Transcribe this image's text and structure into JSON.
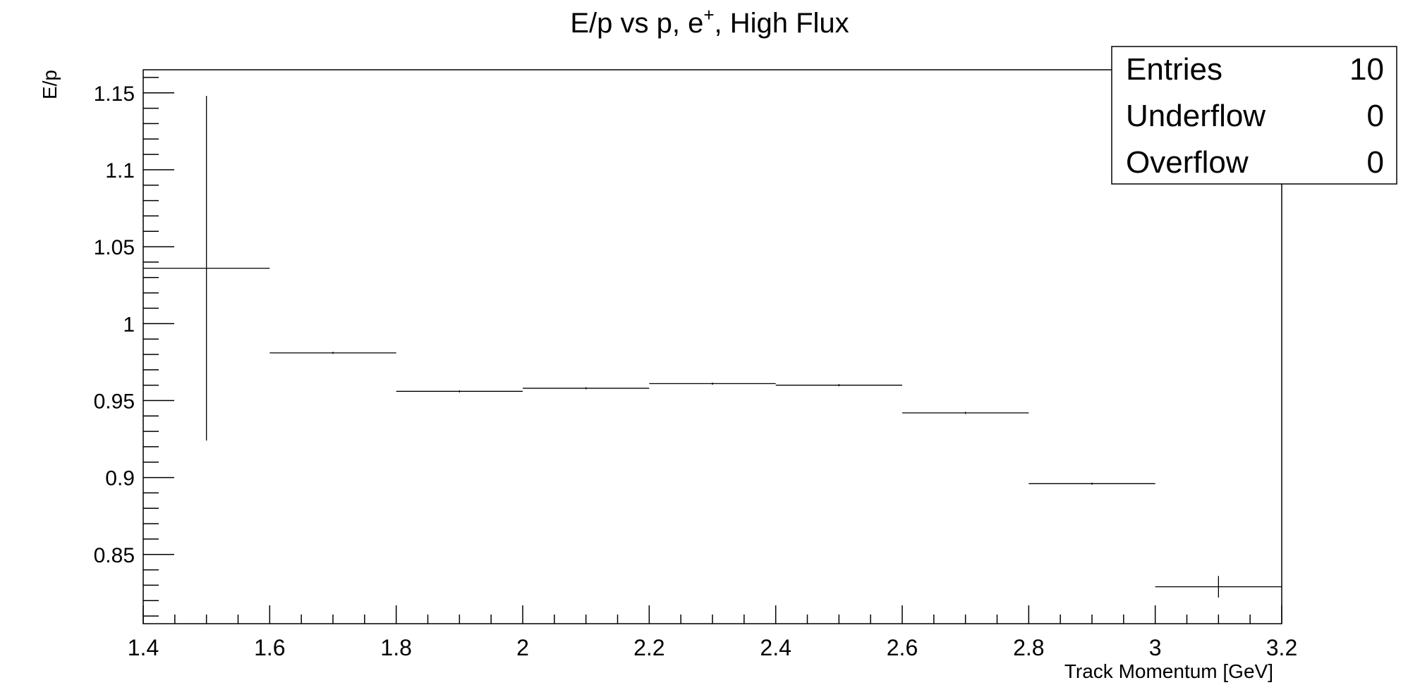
{
  "chart_data": {
    "type": "scatter",
    "title": "E/p vs p, e",
    "title_superscript": "+",
    "title_suffix": ", High Flux",
    "xlabel": "Track Momentum [GeV]",
    "ylabel": "E/p",
    "xlim": [
      1.4,
      3.2
    ],
    "ylim": [
      0.805,
      1.165
    ],
    "x_ticks": [
      1.4,
      1.6,
      1.8,
      2.0,
      2.2,
      2.4,
      2.6,
      2.8,
      3.0,
      3.2
    ],
    "x_tick_labels": [
      "1.4",
      "1.6",
      "1.8",
      "2",
      "2.2",
      "2.4",
      "2.6",
      "2.8",
      "3",
      "3.2"
    ],
    "y_ticks": [
      0.85,
      0.9,
      0.95,
      1.0,
      1.05,
      1.1,
      1.15
    ],
    "y_tick_labels": [
      "0.85",
      "0.9",
      "0.95",
      "1",
      "1.05",
      "1.1",
      "1.15"
    ],
    "grid": false,
    "legend": "none",
    "points": [
      {
        "x": 1.5,
        "x_low": 1.4,
        "x_high": 1.6,
        "y": 1.036,
        "y_err": 0.112
      },
      {
        "x": 1.7,
        "x_low": 1.6,
        "x_high": 1.8,
        "y": 0.981,
        "y_err": 0.0
      },
      {
        "x": 1.9,
        "x_low": 1.8,
        "x_high": 2.0,
        "y": 0.956,
        "y_err": 0.0
      },
      {
        "x": 2.1,
        "x_low": 2.0,
        "x_high": 2.2,
        "y": 0.958,
        "y_err": 0.0
      },
      {
        "x": 2.3,
        "x_low": 2.2,
        "x_high": 2.4,
        "y": 0.961,
        "y_err": 0.0
      },
      {
        "x": 2.5,
        "x_low": 2.4,
        "x_high": 2.6,
        "y": 0.96,
        "y_err": 0.0
      },
      {
        "x": 2.7,
        "x_low": 2.6,
        "x_high": 2.8,
        "y": 0.942,
        "y_err": 0.0
      },
      {
        "x": 2.9,
        "x_low": 2.8,
        "x_high": 3.0,
        "y": 0.896,
        "y_err": 0.0
      },
      {
        "x": 3.1,
        "x_low": 3.0,
        "x_high": 3.2,
        "y": 0.829,
        "y_err": 0.007
      }
    ],
    "stats_box": {
      "rows": [
        {
          "label": "Entries",
          "value": "10"
        },
        {
          "label": "Underflow",
          "value": "0"
        },
        {
          "label": "Overflow",
          "value": "0"
        }
      ]
    },
    "colors": {
      "line": "#000000",
      "background": "#ffffff"
    }
  }
}
